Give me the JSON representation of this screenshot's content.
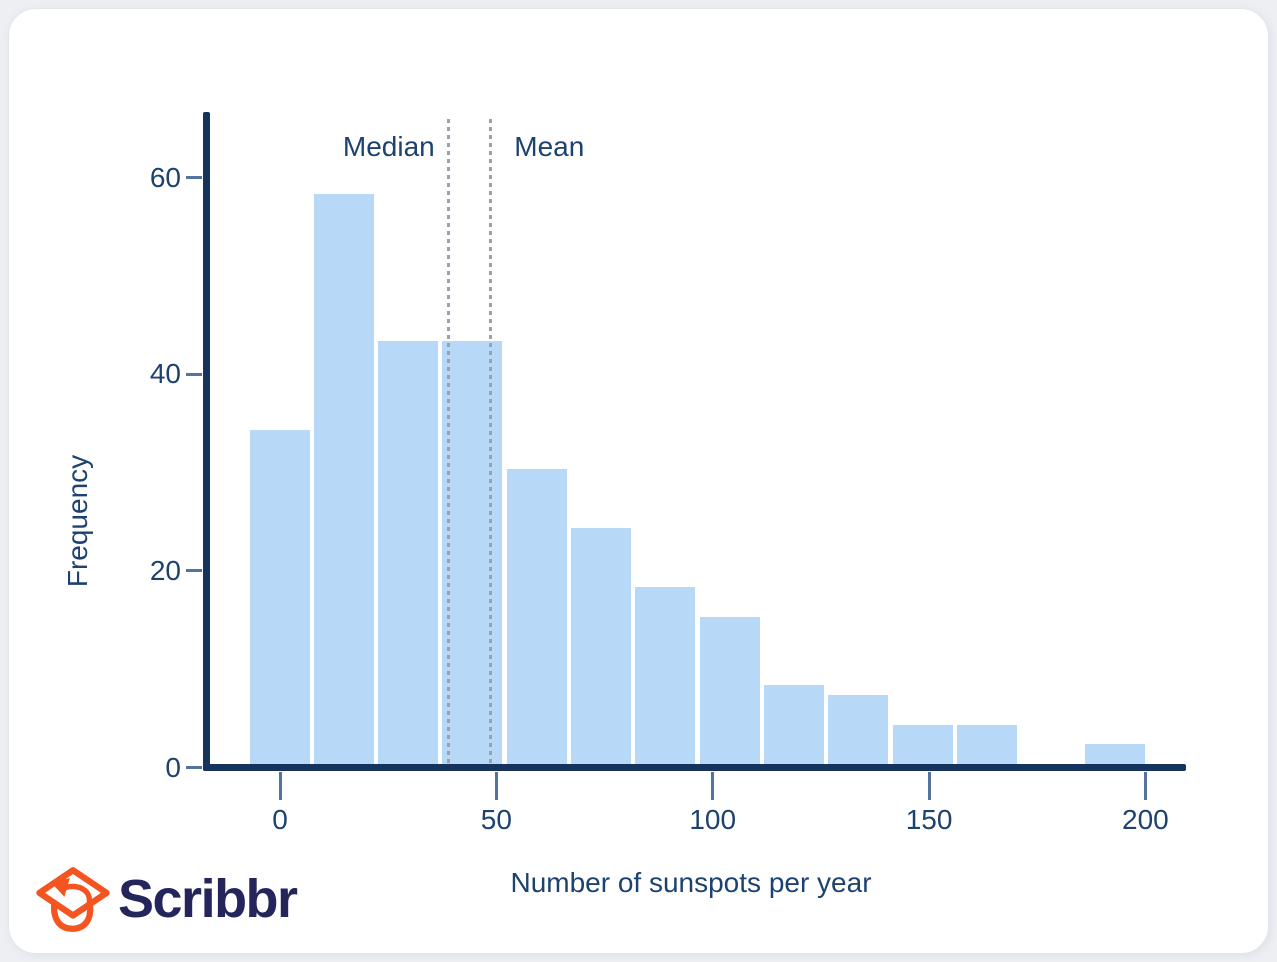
{
  "chart_data": {
    "type": "bar",
    "subtype": "histogram",
    "title": "",
    "xlabel": "Number of sunspots per year",
    "ylabel": "Frequency",
    "bin_width": 15,
    "bin_centers": [
      0,
      15,
      30,
      45,
      60,
      75,
      90,
      105,
      120,
      135,
      150,
      165,
      180,
      195
    ],
    "frequencies": [
      34,
      58,
      43,
      43,
      30,
      24,
      18,
      15,
      8,
      7,
      4,
      4,
      0,
      2
    ],
    "x_ticks": [
      0,
      50,
      100,
      150,
      200
    ],
    "y_ticks": [
      0,
      20,
      40,
      60
    ],
    "xlim": [
      -18,
      210
    ],
    "ylim": [
      0,
      66
    ],
    "grid": false,
    "legend": false,
    "annotations": [
      {
        "label": "Median",
        "x": 39,
        "label_side": "left"
      },
      {
        "label": "Mean",
        "x": 48.6,
        "label_side": "right"
      }
    ]
  },
  "branding": {
    "logo_text": "Scribbr",
    "logo_icon": "graduation-cap-arrow-icon"
  },
  "colors": {
    "bar_fill": "#b7d9f7",
    "axis": "#16335d",
    "tick": "#54749e",
    "text": "#1d4270",
    "dotted_line": "#9ba1ae",
    "logo_orange": "#f4541f",
    "logo_navy": "#24265b",
    "card_background": "#ffffff",
    "page_background": "#edeff3"
  }
}
